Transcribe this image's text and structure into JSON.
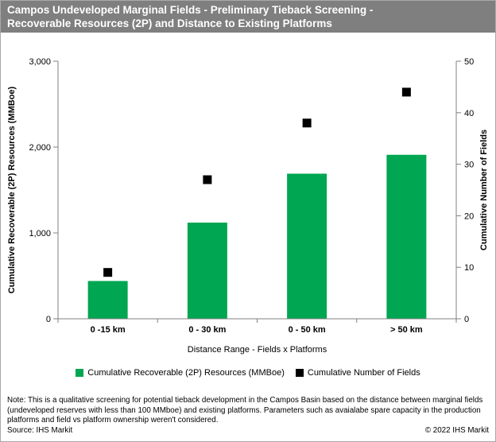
{
  "title": {
    "line1": "Campos Undeveloped Marginal Fields - Preliminary  Tieback Screening -",
    "line2": "Recoverable Resources (2P) and Distance to Existing Platforms"
  },
  "chart_data": {
    "type": "bar",
    "categories": [
      "0 -15 km",
      "0 - 30 km",
      "0 - 50 km",
      "> 50 km"
    ],
    "series": [
      {
        "name": "Cumulative Recoverable (2P) Resources (MMBoe)",
        "type": "bar",
        "axis": "left",
        "color": "#00A651",
        "values": [
          440,
          1120,
          1690,
          1910
        ]
      },
      {
        "name": "Cumulative Number of Fields",
        "type": "scatter",
        "marker": "square",
        "axis": "right",
        "color": "#000000",
        "values": [
          9,
          27,
          38,
          44
        ]
      }
    ],
    "left_axis": {
      "label": "Cumulative  Recoverable  (2P) Resources (MMBoe)",
      "min": 0,
      "max": 3000,
      "tick_values": [
        0,
        1000,
        2000,
        3000
      ],
      "tick_labels": [
        "0",
        "1,000",
        "2,000",
        "3,000"
      ]
    },
    "right_axis": {
      "label": "Cumulative  Number  of Fields",
      "min": 0,
      "max": 50,
      "tick_values": [
        0,
        10,
        20,
        30,
        40,
        50
      ],
      "tick_labels": [
        "0",
        "10",
        "20",
        "30",
        "40",
        "50"
      ]
    },
    "xlabel": "Distance Range  - Fields x Platforms",
    "grid": false,
    "legend_position": "bottom"
  },
  "footer": {
    "note_lines": [
      "Note: This is a qualitative screening for potential tieback development in the Campos Basin based on the distance between  marginal  fields",
      "(undeveloped reserves with less than 100 MMboe)  and existing platforms. Parameters such as avaialabe spare capacity in the production",
      "platforms and field vs platform ownership weren't  considered."
    ],
    "source": "Source:  IHS Markit",
    "copyright": "© 2022  IHS Markit"
  },
  "colors": {
    "bar_green": "#00A651",
    "marker_black": "#000000",
    "title_bg": "#7F7F7F",
    "axis_line": "#808080"
  }
}
